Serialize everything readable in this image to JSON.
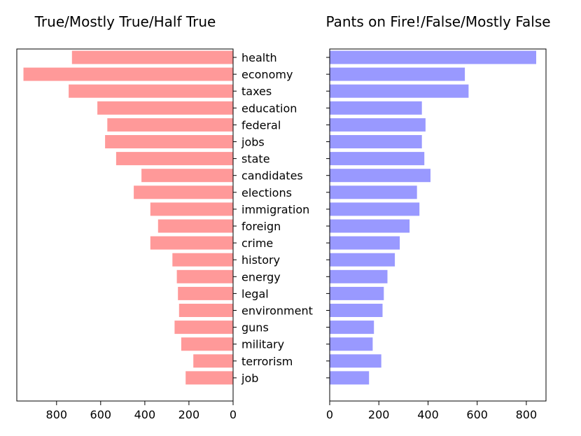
{
  "chart_data": [
    {
      "type": "bar",
      "orientation": "horizontal",
      "direction": "right-to-left",
      "title": "True/Mostly True/Half True",
      "xlabel": "",
      "ylabel": "",
      "color": "#ff9999",
      "xlim": [
        0,
        980
      ],
      "xticks": [
        0,
        200,
        400,
        600,
        800
      ],
      "xtick_labels": [
        "0",
        "200",
        "400",
        "600",
        "800"
      ],
      "categories": [
        "health",
        "economy",
        "taxes",
        "education",
        "federal",
        "jobs",
        "state",
        "candidates",
        "elections",
        "immigration",
        "foreign",
        "crime",
        "history",
        "energy",
        "legal",
        "environment",
        "guns",
        "military",
        "terrorism",
        "job"
      ],
      "values": [
        730,
        950,
        745,
        615,
        570,
        580,
        530,
        415,
        450,
        375,
        340,
        375,
        275,
        255,
        250,
        245,
        265,
        235,
        180,
        215
      ]
    },
    {
      "type": "bar",
      "orientation": "horizontal",
      "direction": "left-to-right",
      "title": "Pants on Fire!/False/Mostly False",
      "xlabel": "",
      "ylabel": "",
      "color": "#9999ff",
      "xlim": [
        0,
        880
      ],
      "xticks": [
        0,
        200,
        400,
        600,
        800
      ],
      "xtick_labels": [
        "0",
        "200",
        "400",
        "600",
        "800"
      ],
      "categories": [
        "health",
        "economy",
        "taxes",
        "education",
        "federal",
        "jobs",
        "state",
        "candidates",
        "elections",
        "immigration",
        "foreign",
        "crime",
        "history",
        "energy",
        "legal",
        "environment",
        "guns",
        "military",
        "terrorism",
        "job"
      ],
      "values": [
        840,
        550,
        565,
        375,
        390,
        375,
        385,
        410,
        355,
        365,
        325,
        285,
        265,
        235,
        220,
        215,
        180,
        175,
        210,
        160
      ]
    }
  ],
  "category_labels": [
    "health",
    "economy",
    "taxes",
    "education",
    "federal",
    "jobs",
    "state",
    "candidates",
    "elections",
    "immigration",
    "foreign",
    "crime",
    "history",
    "energy",
    "legal",
    "environment",
    "guns",
    "military",
    "terrorism",
    "job"
  ]
}
